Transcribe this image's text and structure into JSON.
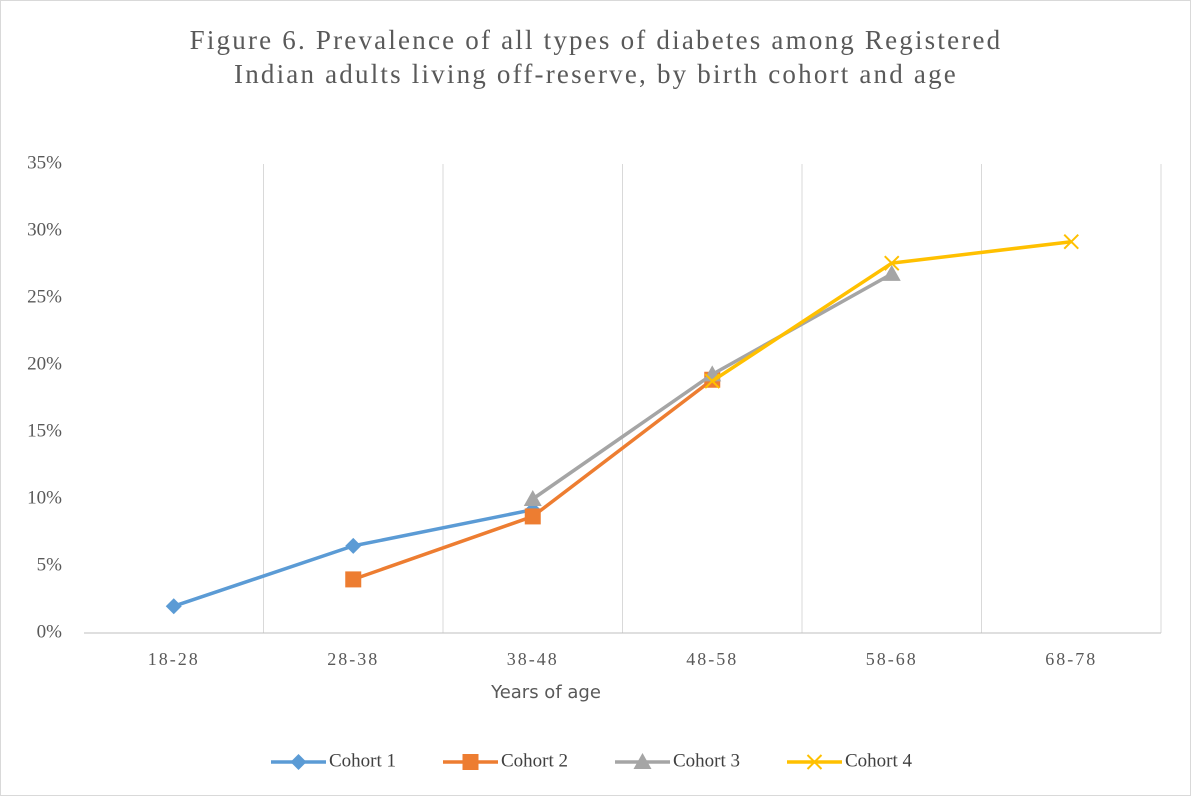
{
  "chart_data": {
    "type": "line",
    "title": "Figure 6. Prevalence of all types of diabetes among Registered Indian adults living off-reserve, by birth cohort and age",
    "x_label": "Years of age",
    "categories": [
      "18-28",
      "28-38",
      "38-48",
      "48-58",
      "58-68",
      "68-78"
    ],
    "series": [
      {
        "name": "Cohort 1",
        "color": "#5b9bd5",
        "marker": "diamond",
        "values": [
          2.0,
          6.5,
          9.2,
          null,
          null,
          null
        ]
      },
      {
        "name": "Cohort 2",
        "color": "#ed7d31",
        "marker": "square",
        "values": [
          null,
          4.0,
          8.7,
          18.9,
          null,
          null
        ]
      },
      {
        "name": "Cohort 3",
        "color": "#a5a5a5",
        "marker": "triangle",
        "values": [
          null,
          null,
          10.0,
          19.3,
          26.8,
          null
        ]
      },
      {
        "name": "Cohort 4",
        "color": "#ffc000",
        "marker": "x",
        "values": [
          null,
          null,
          null,
          18.8,
          27.6,
          29.2
        ]
      }
    ],
    "ylim": [
      0,
      35
    ],
    "yticks": [
      {
        "value": 0,
        "label": "0%"
      },
      {
        "value": 5,
        "label": "5%"
      },
      {
        "value": 10,
        "label": "10%"
      },
      {
        "value": 15,
        "label": "15%"
      },
      {
        "value": 20,
        "label": "20%"
      },
      {
        "value": 25,
        "label": "25%"
      },
      {
        "value": 30,
        "label": "30%"
      },
      {
        "value": 35,
        "label": "35%"
      }
    ],
    "legend": "bottom"
  }
}
